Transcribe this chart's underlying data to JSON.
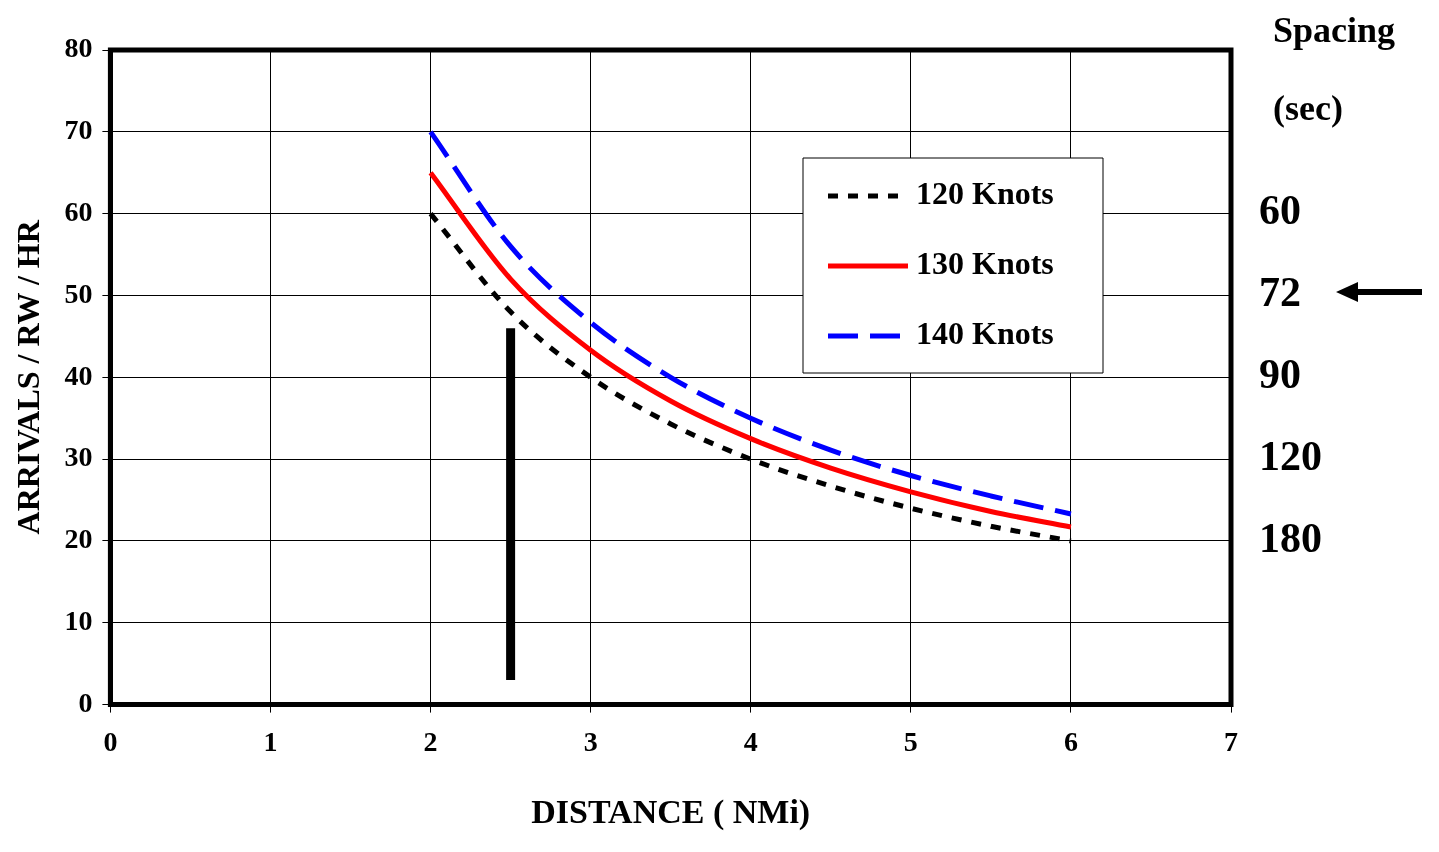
{
  "chart_data": {
    "type": "line",
    "xlabel": "DISTANCE ( NMi)",
    "ylabel": "ARRIVALS / RW / HR",
    "y2label": "Spacing (sec)",
    "x": [
      2,
      2.5,
      3,
      3.5,
      4,
      4.5,
      5,
      5.5,
      6
    ],
    "series": [
      {
        "name": "120 Knots",
        "color": "#000000",
        "line_style": "dotted",
        "values": [
          60,
          48,
          40,
          34.3,
          30,
          26.7,
          24,
          21.8,
          20
        ]
      },
      {
        "name": "130 Knots",
        "color": "#ff0000",
        "line_style": "solid",
        "values": [
          65,
          52,
          43.3,
          37.1,
          32.5,
          28.9,
          26,
          23.6,
          21.7
        ]
      },
      {
        "name": "140 Knots",
        "color": "#0000ff",
        "line_style": "dashed",
        "values": [
          70,
          56,
          46.7,
          40,
          35,
          31.1,
          28,
          25.5,
          23.3
        ]
      },
      {
        "color": "#000000",
        "line_style": "solid",
        "x": [
          2.5,
          2.5
        ],
        "values": [
          3,
          46
        ]
      }
    ],
    "xlim": [
      0,
      7
    ],
    "xticks": [
      0,
      1,
      2,
      3,
      4,
      5,
      6,
      7
    ],
    "ylim": [
      0,
      80
    ],
    "yticks": [
      0,
      10,
      20,
      30,
      40,
      50,
      60,
      70,
      80
    ],
    "annotations": [
      "60",
      "72",
      "90",
      "120",
      "180"
    ],
    "grid": true,
    "legend": "top right",
    "marker": "none"
  }
}
